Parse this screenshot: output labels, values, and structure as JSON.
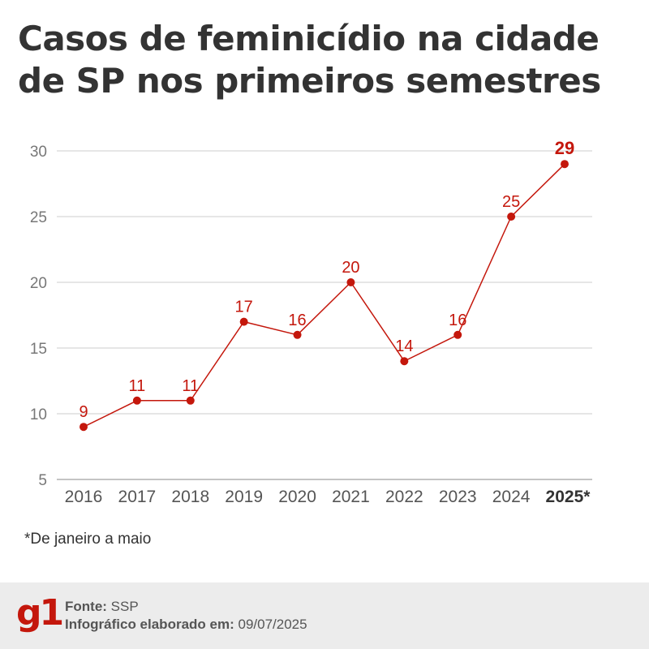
{
  "title": "Casos de feminicídio na cidade de SP nos primeiros semestres",
  "chart_data": {
    "type": "line",
    "title": "Casos de feminicídio na cidade de SP nos primeiros semestres",
    "categories": [
      "2016",
      "2017",
      "2018",
      "2019",
      "2020",
      "2021",
      "2022",
      "2023",
      "2024",
      "2025*"
    ],
    "values": [
      9,
      11,
      11,
      17,
      16,
      20,
      14,
      16,
      25,
      29
    ],
    "yticks": [
      5,
      10,
      15,
      20,
      25,
      30
    ],
    "ylim": [
      5,
      30
    ],
    "xlabel": "",
    "ylabel": "",
    "grid": true,
    "highlight_last": true,
    "line_color": "#c4170c",
    "grid_color": "#cccccc",
    "tick_color": "#555555"
  },
  "footnote": "*De janeiro a maio",
  "footer": {
    "logo": "g1",
    "source_label": "Fonte:",
    "source_value": "SSP",
    "made_label": "Infográfico elaborado em:",
    "made_value": "09/07/2025"
  }
}
